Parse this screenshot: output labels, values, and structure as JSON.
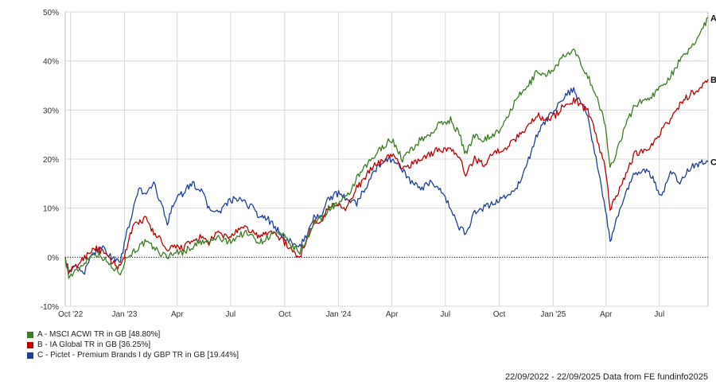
{
  "chart_data": {
    "type": "line",
    "x_ticks": [
      "Oct '22",
      "Jan '23",
      "Apr",
      "Jul",
      "Oct",
      "Jan '24",
      "Apr",
      "Jul",
      "Oct",
      "Jan '25",
      "Apr",
      "Jul"
    ],
    "y_ticks": [
      "50%",
      "40%",
      "30%",
      "20%",
      "10%",
      "0%",
      "-10%"
    ],
    "ylim": [
      -10,
      50
    ],
    "date_range": [
      "2022-09-22",
      "2025-09-22"
    ],
    "grid": true,
    "zero_line": "dotted",
    "series": [
      {
        "name": "A - MSCI ACWI TR in GB [48.80%]",
        "end_label": "A",
        "color": "#3a7d22",
        "points": [
          [
            "2022-09-22",
            0
          ],
          [
            "2022-09-28",
            -4
          ],
          [
            "2022-10-10",
            -3
          ],
          [
            "2022-10-25",
            -1
          ],
          [
            "2022-11-10",
            1
          ],
          [
            "2022-11-25",
            0
          ],
          [
            "2022-12-10",
            -2
          ],
          [
            "2022-12-25",
            -3
          ],
          [
            "2023-01-05",
            0
          ],
          [
            "2023-01-15",
            1
          ],
          [
            "2023-01-25",
            2
          ],
          [
            "2023-02-05",
            3
          ],
          [
            "2023-02-20",
            2
          ],
          [
            "2023-03-01",
            1
          ],
          [
            "2023-03-15",
            0
          ],
          [
            "2023-03-25",
            1
          ],
          [
            "2023-04-10",
            1
          ],
          [
            "2023-04-25",
            2
          ],
          [
            "2023-05-10",
            3
          ],
          [
            "2023-05-25",
            3
          ],
          [
            "2023-06-10",
            4
          ],
          [
            "2023-06-25",
            3
          ],
          [
            "2023-07-10",
            4
          ],
          [
            "2023-07-25",
            5
          ],
          [
            "2023-08-10",
            4
          ],
          [
            "2023-08-20",
            3
          ],
          [
            "2023-09-01",
            4
          ],
          [
            "2023-09-15",
            5
          ],
          [
            "2023-10-01",
            4
          ],
          [
            "2023-10-15",
            2
          ],
          [
            "2023-10-27",
            1
          ],
          [
            "2023-11-05",
            3
          ],
          [
            "2023-11-20",
            7
          ],
          [
            "2023-12-05",
            8
          ],
          [
            "2023-12-15",
            10
          ],
          [
            "2024-01-01",
            11
          ],
          [
            "2024-01-15",
            12
          ],
          [
            "2024-02-01",
            16
          ],
          [
            "2024-02-20",
            19
          ],
          [
            "2024-03-05",
            21
          ],
          [
            "2024-03-20",
            23
          ],
          [
            "2024-04-01",
            24
          ],
          [
            "2024-04-19",
            20
          ],
          [
            "2024-05-05",
            22
          ],
          [
            "2024-05-20",
            24
          ],
          [
            "2024-06-05",
            25
          ],
          [
            "2024-06-20",
            27
          ],
          [
            "2024-07-10",
            28
          ],
          [
            "2024-07-25",
            25
          ],
          [
            "2024-08-05",
            21
          ],
          [
            "2024-08-20",
            25
          ],
          [
            "2024-09-05",
            24
          ],
          [
            "2024-09-20",
            25
          ],
          [
            "2024-10-05",
            26
          ],
          [
            "2024-10-20",
            30
          ],
          [
            "2024-11-05",
            33
          ],
          [
            "2024-11-20",
            35
          ],
          [
            "2024-12-05",
            38
          ],
          [
            "2024-12-20",
            37
          ],
          [
            "2025-01-05",
            39
          ],
          [
            "2025-01-20",
            41
          ],
          [
            "2025-02-05",
            42
          ],
          [
            "2025-02-15",
            40
          ],
          [
            "2025-03-01",
            37
          ],
          [
            "2025-03-15",
            33
          ],
          [
            "2025-03-31",
            27
          ],
          [
            "2025-04-08",
            18
          ],
          [
            "2025-04-20",
            22
          ],
          [
            "2025-05-05",
            27
          ],
          [
            "2025-05-20",
            31
          ],
          [
            "2025-06-05",
            32
          ],
          [
            "2025-06-20",
            33
          ],
          [
            "2025-07-05",
            35
          ],
          [
            "2025-07-20",
            37
          ],
          [
            "2025-08-05",
            40
          ],
          [
            "2025-08-20",
            42
          ],
          [
            "2025-09-05",
            45
          ],
          [
            "2025-09-22",
            48.8
          ]
        ]
      },
      {
        "name": "B - IA Global TR in GB [36.25%]",
        "end_label": "B",
        "color": "#c00000",
        "points": [
          [
            "2022-09-22",
            0
          ],
          [
            "2022-09-28",
            -3
          ],
          [
            "2022-10-10",
            -2
          ],
          [
            "2022-10-25",
            0
          ],
          [
            "2022-11-10",
            2
          ],
          [
            "2022-11-25",
            1
          ],
          [
            "2022-12-10",
            -1
          ],
          [
            "2022-12-25",
            -2
          ],
          [
            "2023-01-05",
            2
          ],
          [
            "2023-01-15",
            6
          ],
          [
            "2023-01-25",
            7
          ],
          [
            "2023-02-05",
            8
          ],
          [
            "2023-02-20",
            5
          ],
          [
            "2023-03-01",
            4
          ],
          [
            "2023-03-15",
            1
          ],
          [
            "2023-03-25",
            2
          ],
          [
            "2023-04-10",
            2
          ],
          [
            "2023-04-25",
            3
          ],
          [
            "2023-05-10",
            4
          ],
          [
            "2023-05-25",
            3
          ],
          [
            "2023-06-10",
            5
          ],
          [
            "2023-06-25",
            4
          ],
          [
            "2023-07-10",
            5
          ],
          [
            "2023-07-25",
            6
          ],
          [
            "2023-08-10",
            5
          ],
          [
            "2023-08-20",
            4
          ],
          [
            "2023-09-01",
            5
          ],
          [
            "2023-09-15",
            5
          ],
          [
            "2023-10-01",
            3
          ],
          [
            "2023-10-15",
            1
          ],
          [
            "2023-10-27",
            0
          ],
          [
            "2023-11-05",
            3
          ],
          [
            "2023-11-20",
            7
          ],
          [
            "2023-12-05",
            8
          ],
          [
            "2023-12-15",
            10
          ],
          [
            "2024-01-01",
            11
          ],
          [
            "2024-01-15",
            10
          ],
          [
            "2024-02-01",
            14
          ],
          [
            "2024-02-20",
            17
          ],
          [
            "2024-03-05",
            19
          ],
          [
            "2024-03-20",
            20
          ],
          [
            "2024-04-01",
            21
          ],
          [
            "2024-04-19",
            18
          ],
          [
            "2024-05-05",
            19
          ],
          [
            "2024-05-20",
            20
          ],
          [
            "2024-06-05",
            21
          ],
          [
            "2024-06-20",
            22
          ],
          [
            "2024-07-10",
            22
          ],
          [
            "2024-07-25",
            20
          ],
          [
            "2024-08-05",
            17
          ],
          [
            "2024-08-20",
            20
          ],
          [
            "2024-09-05",
            19
          ],
          [
            "2024-09-20",
            21
          ],
          [
            "2024-10-05",
            22
          ],
          [
            "2024-10-20",
            23
          ],
          [
            "2024-11-05",
            25
          ],
          [
            "2024-11-20",
            27
          ],
          [
            "2024-12-05",
            29
          ],
          [
            "2024-12-20",
            28
          ],
          [
            "2025-01-05",
            29
          ],
          [
            "2025-01-20",
            31
          ],
          [
            "2025-02-05",
            32
          ],
          [
            "2025-02-15",
            31
          ],
          [
            "2025-03-01",
            30
          ],
          [
            "2025-03-15",
            25
          ],
          [
            "2025-03-31",
            18
          ],
          [
            "2025-04-08",
            10
          ],
          [
            "2025-04-20",
            13
          ],
          [
            "2025-05-05",
            17
          ],
          [
            "2025-05-20",
            21
          ],
          [
            "2025-06-05",
            22
          ],
          [
            "2025-06-20",
            23
          ],
          [
            "2025-07-05",
            26
          ],
          [
            "2025-07-20",
            28
          ],
          [
            "2025-08-05",
            31
          ],
          [
            "2025-08-20",
            33
          ],
          [
            "2025-09-05",
            34
          ],
          [
            "2025-09-22",
            36.25
          ]
        ]
      },
      {
        "name": "C - Pictet - Premium Brands I dy GBP TR in GB [19.44%]",
        "end_label": "C",
        "color": "#1f3f99",
        "points": [
          [
            "2022-09-22",
            0
          ],
          [
            "2022-09-28",
            -3
          ],
          [
            "2022-10-10",
            -2
          ],
          [
            "2022-10-25",
            -3
          ],
          [
            "2022-11-10",
            1
          ],
          [
            "2022-11-25",
            2
          ],
          [
            "2022-12-10",
            0
          ],
          [
            "2022-12-25",
            -1
          ],
          [
            "2023-01-05",
            5
          ],
          [
            "2023-01-15",
            9
          ],
          [
            "2023-01-25",
            14
          ],
          [
            "2023-02-05",
            13
          ],
          [
            "2023-02-20",
            15
          ],
          [
            "2023-03-01",
            12
          ],
          [
            "2023-03-15",
            7
          ],
          [
            "2023-03-25",
            11
          ],
          [
            "2023-04-10",
            13
          ],
          [
            "2023-04-25",
            15
          ],
          [
            "2023-05-10",
            14
          ],
          [
            "2023-05-25",
            10
          ],
          [
            "2023-06-10",
            9
          ],
          [
            "2023-06-25",
            11
          ],
          [
            "2023-07-10",
            12
          ],
          [
            "2023-07-25",
            11
          ],
          [
            "2023-08-10",
            10
          ],
          [
            "2023-08-20",
            8
          ],
          [
            "2023-09-01",
            8
          ],
          [
            "2023-09-15",
            6
          ],
          [
            "2023-10-01",
            4
          ],
          [
            "2023-10-15",
            3
          ],
          [
            "2023-10-27",
            2
          ],
          [
            "2023-11-05",
            4
          ],
          [
            "2023-11-20",
            8
          ],
          [
            "2023-12-05",
            9
          ],
          [
            "2023-12-15",
            12
          ],
          [
            "2024-01-01",
            13
          ],
          [
            "2024-01-15",
            12
          ],
          [
            "2024-02-01",
            11
          ],
          [
            "2024-02-20",
            15
          ],
          [
            "2024-03-05",
            18
          ],
          [
            "2024-03-20",
            20
          ],
          [
            "2024-04-01",
            20
          ],
          [
            "2024-04-19",
            18
          ],
          [
            "2024-05-05",
            15
          ],
          [
            "2024-05-20",
            14
          ],
          [
            "2024-06-05",
            15
          ],
          [
            "2024-06-20",
            14
          ],
          [
            "2024-07-10",
            10
          ],
          [
            "2024-07-25",
            6
          ],
          [
            "2024-08-05",
            5
          ],
          [
            "2024-08-20",
            9
          ],
          [
            "2024-09-05",
            10
          ],
          [
            "2024-09-20",
            11
          ],
          [
            "2024-10-05",
            12
          ],
          [
            "2024-10-20",
            13
          ],
          [
            "2024-11-05",
            15
          ],
          [
            "2024-11-20",
            20
          ],
          [
            "2024-12-05",
            25
          ],
          [
            "2024-12-20",
            28
          ],
          [
            "2025-01-05",
            30
          ],
          [
            "2025-01-20",
            33
          ],
          [
            "2025-02-05",
            34
          ],
          [
            "2025-02-15",
            32
          ],
          [
            "2025-03-01",
            29
          ],
          [
            "2025-03-15",
            20
          ],
          [
            "2025-03-31",
            10
          ],
          [
            "2025-04-08",
            3
          ],
          [
            "2025-04-20",
            8
          ],
          [
            "2025-05-05",
            13
          ],
          [
            "2025-05-20",
            17
          ],
          [
            "2025-06-05",
            18
          ],
          [
            "2025-06-20",
            16
          ],
          [
            "2025-07-05",
            12
          ],
          [
            "2025-07-20",
            18
          ],
          [
            "2025-08-05",
            15
          ],
          [
            "2025-08-20",
            18
          ],
          [
            "2025-09-05",
            19
          ],
          [
            "2025-09-22",
            19.44
          ]
        ]
      }
    ]
  },
  "footer": {
    "text": "22/09/2022 - 22/09/2025 Data from FE fundinfo2025"
  }
}
